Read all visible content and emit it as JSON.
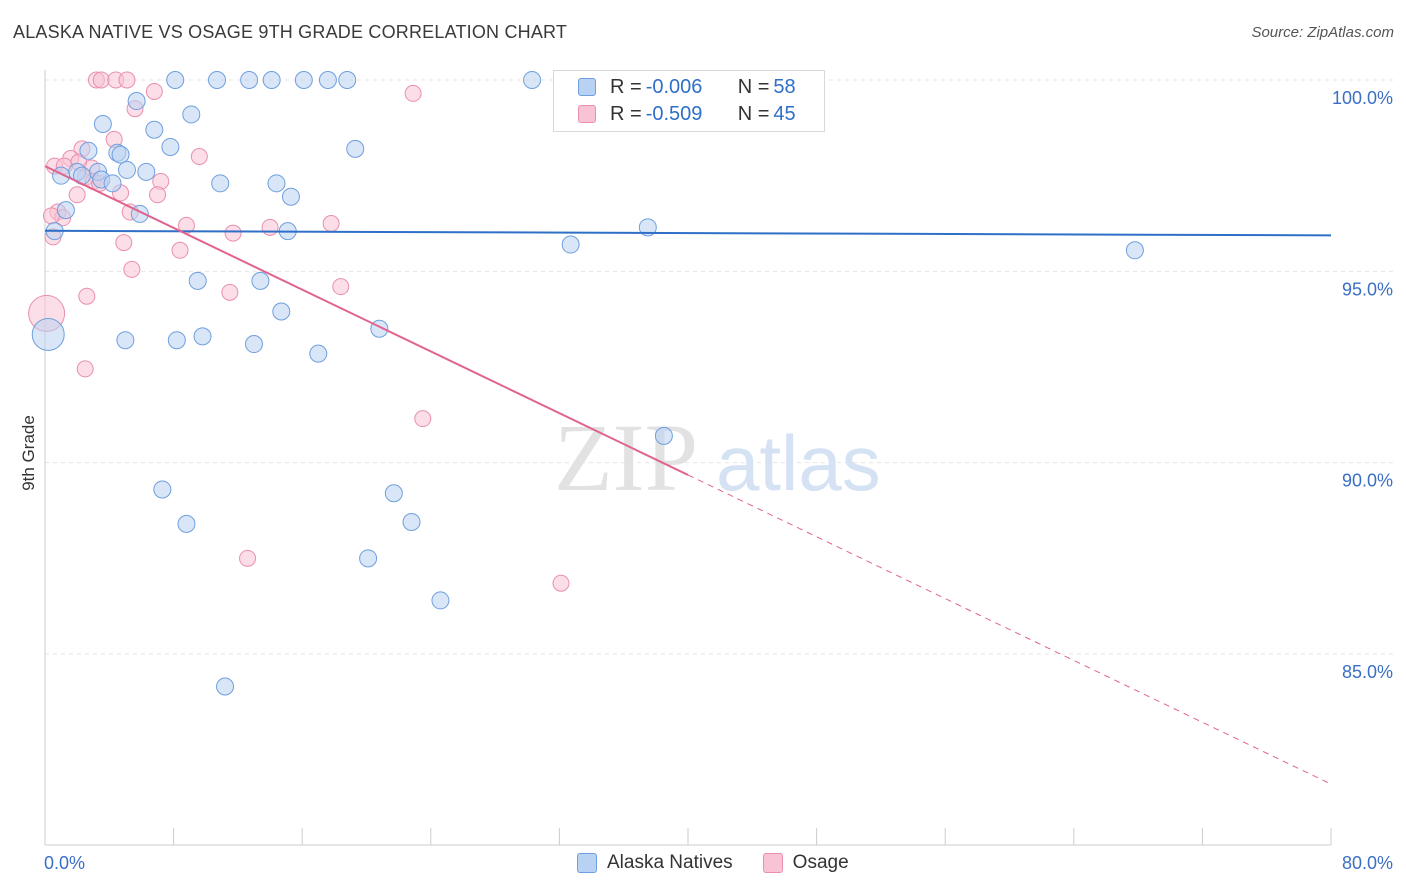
{
  "header": {
    "title": "ALASKA NATIVE VS OSAGE 9TH GRADE CORRELATION CHART",
    "source": "Source: ZipAtlas.com"
  },
  "legend_top": {
    "blue": {
      "r_label": "R = ",
      "r_value": "-0.006",
      "n_label": "N = ",
      "n_value": "58"
    },
    "pink": {
      "r_label": "R = ",
      "r_value": "-0.509",
      "n_label": "N = ",
      "n_value": "45"
    }
  },
  "legend_bottom": {
    "blue_label": "Alaska Natives",
    "pink_label": "Osage"
  },
  "colors": {
    "blue_fill": "#b9d1f2",
    "blue_stroke": "#6f9fde",
    "blue_line": "#2f6fc8",
    "pink_fill": "#f8c3d4",
    "pink_stroke": "#ea8fae",
    "pink_line": "#e0648d",
    "tick_text": "#3a6fc4"
  },
  "chart_data": {
    "type": "scatter",
    "title": "ALASKA NATIVE VS OSAGE 9TH GRADE CORRELATION CHART",
    "xlabel": "",
    "ylabel": "9th Grade",
    "xlim": [
      0,
      80
    ],
    "ylim": [
      80.5,
      100.4
    ],
    "x_tick_labels": [
      "0.0%",
      "80.0%"
    ],
    "y_ticks": [
      85,
      90,
      95,
      100
    ],
    "y_tick_labels": [
      "85.0%",
      "90.0%",
      "95.0%",
      "100.0%"
    ],
    "watermark": {
      "zip": "ZIP",
      "atlas": "atlas"
    },
    "series": [
      {
        "name": "Alaska Natives",
        "r": -0.006,
        "n": 58,
        "trend": {
          "x0": 0,
          "y0": 96.06,
          "x1": 80,
          "y1": 95.94
        },
        "points": [
          {
            "x": 8.1,
            "y": 100.0
          },
          {
            "x": 10.7,
            "y": 100.0
          },
          {
            "x": 12.7,
            "y": 100.0
          },
          {
            "x": 14.1,
            "y": 100.0
          },
          {
            "x": 16.1,
            "y": 100.0
          },
          {
            "x": 17.6,
            "y": 100.0
          },
          {
            "x": 18.8,
            "y": 100.0
          },
          {
            "x": 30.3,
            "y": 100.0
          },
          {
            "x": 5.7,
            "y": 99.45
          },
          {
            "x": 9.1,
            "y": 99.1
          },
          {
            "x": 3.6,
            "y": 98.85
          },
          {
            "x": 6.8,
            "y": 98.7
          },
          {
            "x": 7.8,
            "y": 98.25
          },
          {
            "x": 2.7,
            "y": 98.15
          },
          {
            "x": 4.5,
            "y": 98.1
          },
          {
            "x": 4.7,
            "y": 98.05
          },
          {
            "x": 19.3,
            "y": 98.2
          },
          {
            "x": 2.0,
            "y": 97.6
          },
          {
            "x": 3.3,
            "y": 97.6
          },
          {
            "x": 6.3,
            "y": 97.6
          },
          {
            "x": 5.1,
            "y": 97.65
          },
          {
            "x": 1.0,
            "y": 97.5
          },
          {
            "x": 2.3,
            "y": 97.5
          },
          {
            "x": 3.5,
            "y": 97.4
          },
          {
            "x": 4.2,
            "y": 97.3
          },
          {
            "x": 10.9,
            "y": 97.3
          },
          {
            "x": 14.4,
            "y": 97.3
          },
          {
            "x": 15.3,
            "y": 96.95
          },
          {
            "x": 1.3,
            "y": 96.6
          },
          {
            "x": 5.9,
            "y": 96.5
          },
          {
            "x": 0.6,
            "y": 96.05
          },
          {
            "x": 15.1,
            "y": 96.05
          },
          {
            "x": 37.5,
            "y": 96.15
          },
          {
            "x": 32.7,
            "y": 95.7
          },
          {
            "x": 67.8,
            "y": 95.55
          },
          {
            "x": 9.5,
            "y": 94.75
          },
          {
            "x": 13.4,
            "y": 94.75
          },
          {
            "x": 14.7,
            "y": 93.95
          },
          {
            "x": 0.2,
            "y": 93.35
          },
          {
            "x": 5.0,
            "y": 93.2
          },
          {
            "x": 8.2,
            "y": 93.2
          },
          {
            "x": 9.8,
            "y": 93.3
          },
          {
            "x": 13.0,
            "y": 93.1
          },
          {
            "x": 17.0,
            "y": 92.85
          },
          {
            "x": 20.8,
            "y": 93.5
          },
          {
            "x": 38.5,
            "y": 90.7
          },
          {
            "x": 7.3,
            "y": 89.3
          },
          {
            "x": 21.7,
            "y": 89.2
          },
          {
            "x": 8.8,
            "y": 88.4
          },
          {
            "x": 22.8,
            "y": 88.45
          },
          {
            "x": 20.1,
            "y": 87.5
          },
          {
            "x": 24.6,
            "y": 86.4
          },
          {
            "x": 11.2,
            "y": 84.15
          }
        ]
      },
      {
        "name": "Osage",
        "r": -0.509,
        "n": 45,
        "trend": {
          "x0": 0,
          "y0": 97.75,
          "x1": 40,
          "y1": 89.68,
          "dashed_to_x": 80,
          "dashed_to_y": 81.6
        },
        "points": [
          {
            "x": 3.2,
            "y": 100.0
          },
          {
            "x": 3.5,
            "y": 100.0
          },
          {
            "x": 4.4,
            "y": 100.0
          },
          {
            "x": 5.1,
            "y": 100.0
          },
          {
            "x": 6.8,
            "y": 99.7
          },
          {
            "x": 22.9,
            "y": 99.65
          },
          {
            "x": 5.6,
            "y": 99.25
          },
          {
            "x": 4.3,
            "y": 98.45
          },
          {
            "x": 2.3,
            "y": 98.2
          },
          {
            "x": 1.6,
            "y": 97.95
          },
          {
            "x": 2.1,
            "y": 97.85
          },
          {
            "x": 2.9,
            "y": 97.7
          },
          {
            "x": 0.6,
            "y": 97.75
          },
          {
            "x": 1.2,
            "y": 97.75
          },
          {
            "x": 9.6,
            "y": 98.0
          },
          {
            "x": 2.5,
            "y": 97.45
          },
          {
            "x": 3.0,
            "y": 97.35
          },
          {
            "x": 3.4,
            "y": 97.3
          },
          {
            "x": 7.2,
            "y": 97.35
          },
          {
            "x": 4.7,
            "y": 97.05
          },
          {
            "x": 7.0,
            "y": 97.0
          },
          {
            "x": 2.0,
            "y": 97.0
          },
          {
            "x": 0.8,
            "y": 96.55
          },
          {
            "x": 1.1,
            "y": 96.4
          },
          {
            "x": 5.3,
            "y": 96.55
          },
          {
            "x": 0.4,
            "y": 96.45
          },
          {
            "x": 8.8,
            "y": 96.2
          },
          {
            "x": 14.0,
            "y": 96.15
          },
          {
            "x": 17.8,
            "y": 96.25
          },
          {
            "x": 11.7,
            "y": 96.0
          },
          {
            "x": 0.5,
            "y": 95.9
          },
          {
            "x": 4.9,
            "y": 95.75
          },
          {
            "x": 8.4,
            "y": 95.55
          },
          {
            "x": 5.4,
            "y": 95.05
          },
          {
            "x": 18.4,
            "y": 94.6
          },
          {
            "x": 11.5,
            "y": 94.45
          },
          {
            "x": 2.6,
            "y": 94.35
          },
          {
            "x": 0.1,
            "y": 93.9
          },
          {
            "x": 2.5,
            "y": 92.45
          },
          {
            "x": 23.5,
            "y": 91.15
          },
          {
            "x": 12.6,
            "y": 87.5
          },
          {
            "x": 32.1,
            "y": 86.85
          }
        ]
      }
    ]
  }
}
